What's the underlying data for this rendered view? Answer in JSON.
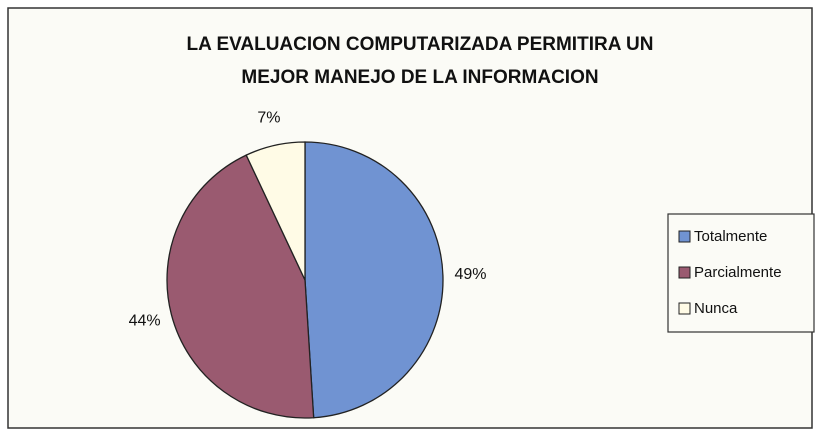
{
  "chart_data": {
    "type": "pie",
    "title": [
      "LA EVALUACION COMPUTARIZADA PERMITIRA UN",
      "MEJOR MANEJO DE LA INFORMACION"
    ],
    "categories": [
      "Totalmente",
      "Parcialmente",
      "Nunca"
    ],
    "values": [
      49,
      44,
      7
    ],
    "value_labels": [
      "49%",
      "44%",
      "7%"
    ],
    "colors": [
      "#7093d2",
      "#9a5a70",
      "#fffbe6"
    ],
    "legend": "right"
  }
}
